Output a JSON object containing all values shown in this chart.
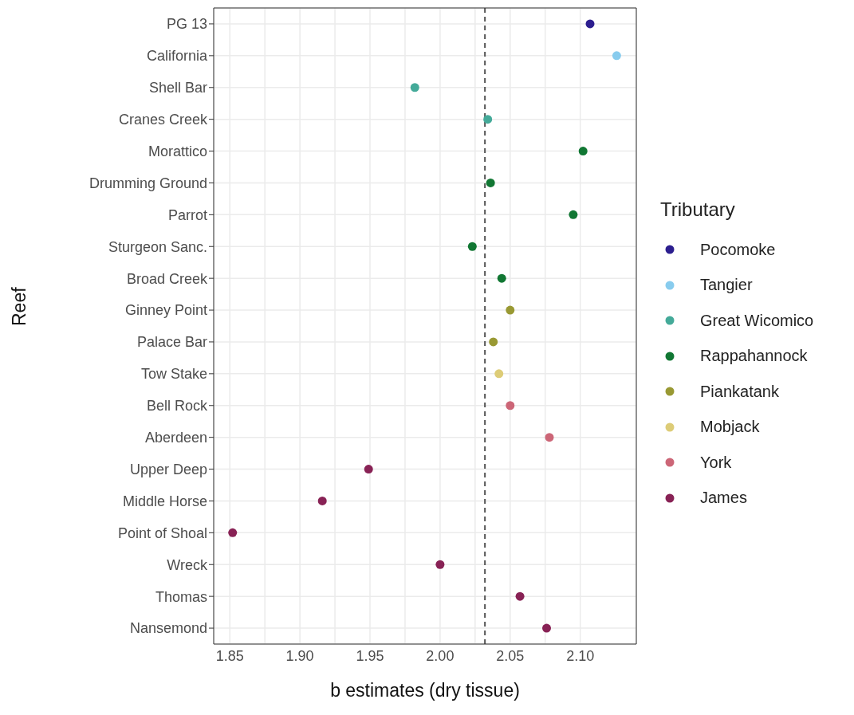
{
  "chart_data": {
    "type": "scatter",
    "orientation": "horizontal",
    "xlabel": "b estimates (dry tissue)",
    "ylabel": "Reef",
    "legend_title": "Tributary",
    "categories": [
      "PG 13",
      "California",
      "Shell Bar",
      "Cranes Creek",
      "Morattico",
      "Drumming Ground",
      "Parrot",
      "Sturgeon Sanc.",
      "Broad Creek",
      "Ginney Point",
      "Palace Bar",
      "Tow Stake",
      "Bell Rock",
      "Aberdeen",
      "Upper Deep",
      "Middle Horse",
      "Point of Shoal",
      "Wreck",
      "Thomas",
      "Nansemond"
    ],
    "series": [
      {
        "name": "Pocomoke",
        "color": "#2c1e8f",
        "values": [
          2.107,
          null,
          null,
          null,
          null,
          null,
          null,
          null,
          null,
          null,
          null,
          null,
          null,
          null,
          null,
          null,
          null,
          null,
          null,
          null
        ]
      },
      {
        "name": "Tangier",
        "color": "#88ccee",
        "values": [
          null,
          2.126,
          null,
          null,
          null,
          null,
          null,
          null,
          null,
          null,
          null,
          null,
          null,
          null,
          null,
          null,
          null,
          null,
          null,
          null
        ]
      },
      {
        "name": "Great Wicomico",
        "color": "#44aa99",
        "values": [
          null,
          null,
          1.982,
          2.034,
          null,
          null,
          null,
          null,
          null,
          null,
          null,
          null,
          null,
          null,
          null,
          null,
          null,
          null,
          null,
          null
        ]
      },
      {
        "name": "Rappahannock",
        "color": "#117733",
        "values": [
          null,
          null,
          null,
          null,
          2.102,
          2.036,
          2.095,
          2.023,
          2.044,
          null,
          null,
          null,
          null,
          null,
          null,
          null,
          null,
          null,
          null,
          null
        ]
      },
      {
        "name": "Piankatank",
        "color": "#999933",
        "values": [
          null,
          null,
          null,
          null,
          null,
          null,
          null,
          null,
          null,
          2.05,
          2.038,
          null,
          null,
          null,
          null,
          null,
          null,
          null,
          null,
          null
        ]
      },
      {
        "name": "Mobjack",
        "color": "#ddcc77",
        "values": [
          null,
          null,
          null,
          null,
          null,
          null,
          null,
          null,
          null,
          null,
          null,
          2.042,
          null,
          null,
          null,
          null,
          null,
          null,
          null,
          null
        ]
      },
      {
        "name": "York",
        "color": "#cc6677",
        "values": [
          null,
          null,
          null,
          null,
          null,
          null,
          null,
          null,
          null,
          null,
          null,
          null,
          2.05,
          2.078,
          null,
          null,
          null,
          null,
          null,
          null
        ]
      },
      {
        "name": "James",
        "color": "#882255",
        "values": [
          null,
          null,
          null,
          null,
          null,
          null,
          null,
          null,
          null,
          null,
          null,
          null,
          null,
          null,
          1.949,
          1.916,
          1.852,
          2.0,
          2.057,
          2.076
        ]
      }
    ],
    "xlim": [
      1.8385,
      2.14
    ],
    "xticks": [
      1.85,
      {
        "value": 1.9,
        "label": "1.90"
      },
      1.95,
      {
        "value": 2.0,
        "label": "2.00"
      },
      2.05,
      {
        "value": 2.1,
        "label": "2.10"
      }
    ],
    "ref_lines": [
      {
        "axis": "x",
        "value": 2.032,
        "color": "#555555",
        "line_style": "dashed"
      }
    ],
    "grid": true,
    "legend": "right",
    "marker": "circle"
  }
}
